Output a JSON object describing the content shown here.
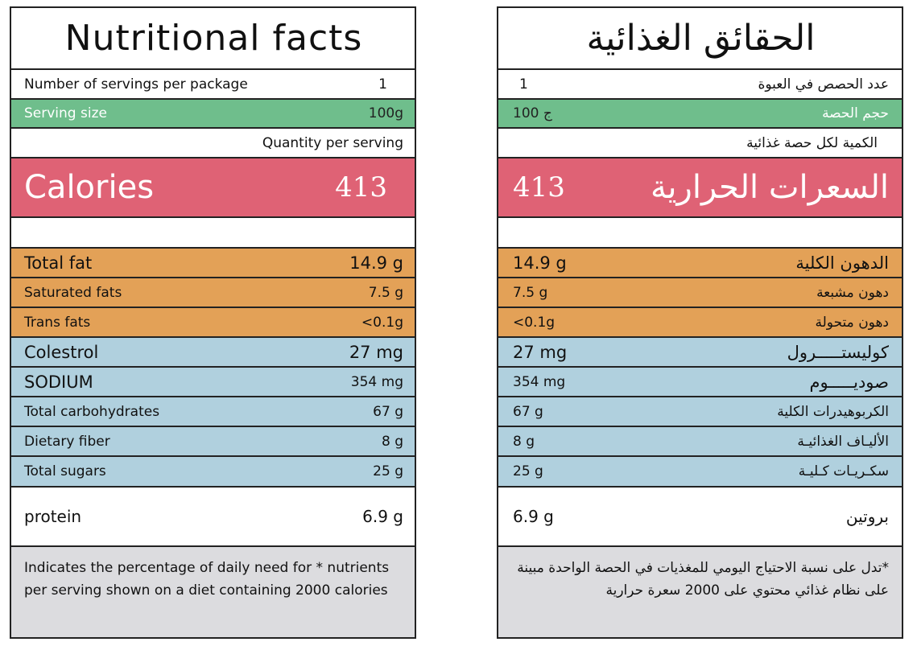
{
  "en": {
    "title": "Nutritional facts",
    "servings_label": "Number of servings per package",
    "servings_value": "1",
    "serving_size_label": "Serving size",
    "serving_size_value": "100g",
    "quantity_label": "Quantity per serving",
    "calories_label": "Calories",
    "calories_value": "413",
    "nutrients": [
      {
        "label": "Total fat",
        "value": "14.9 g"
      },
      {
        "label": "Saturated fats",
        "value": "7.5 g"
      },
      {
        "label": "Trans fats",
        "value": "<0.1g"
      },
      {
        "label": "Colestrol",
        "value": "27 mg"
      },
      {
        "label": "SODIUM",
        "value": "354 mg"
      },
      {
        "label": "Total carbohydrates",
        "value": "67 g"
      },
      {
        "label": "Dietary fiber",
        "value": "8 g"
      },
      {
        "label": "Total sugars",
        "value": "25 g"
      }
    ],
    "protein_label": "protein",
    "protein_value": "6.9 g",
    "note": "Indicates the percentage of daily need for * nutrients per serving shown on a diet containing 2000 calories"
  },
  "ar": {
    "title": "الحقائق الغذائية",
    "servings_label": "عدد الحصص في العبوة",
    "servings_value": "1",
    "serving_size_label": "حجم الحصة",
    "serving_size_value": "100 ج",
    "quantity_label": "الكمية لكل حصة غذائية",
    "calories_label": "السعرات الحرارية",
    "calories_value": "413",
    "nutrients": [
      {
        "label": "الدهون الكلية",
        "value": "14.9 g"
      },
      {
        "label": "دهون مشبعة",
        "value": "7.5 g"
      },
      {
        "label": "دهون متحولة",
        "value": "<0.1g"
      },
      {
        "label": "كوليستـــــرول",
        "value": "27 mg"
      },
      {
        "label": "صوديـــــوم",
        "value": "354 mg"
      },
      {
        "label": "الكربوهيدرات الكلية",
        "value": "67 g"
      },
      {
        "label": "الأليـاف الغذائيـة",
        "value": "8 g"
      },
      {
        "label": "سكـريـات كـليـة",
        "value": "25 g"
      }
    ],
    "protein_label": "بروتين",
    "protein_value": "6.9 g",
    "note": "*تدل على نسبة الاحتياج اليومي للمغذيات في الحصة الواحدة مبينة على نظام غذائي محتوي على 2000 سعرة حرارية"
  },
  "colors": {
    "green": "#6fbe8c",
    "red": "#df6275",
    "orange": "#e3a157",
    "blue": "#b0d0de",
    "grey": "#dcdcdf"
  }
}
